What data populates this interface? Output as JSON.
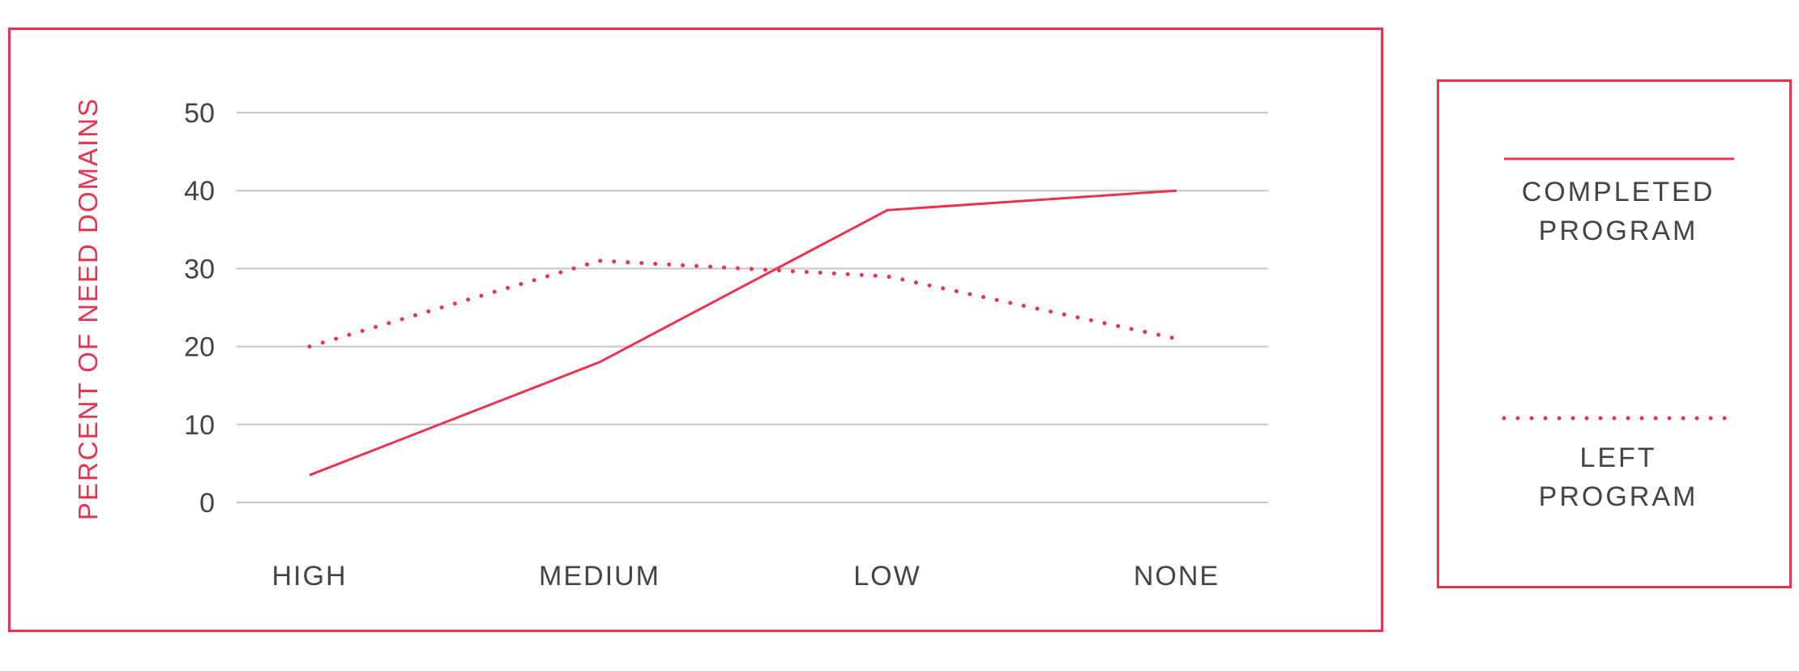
{
  "chart_data": {
    "type": "line",
    "title": "",
    "xlabel": "",
    "ylabel": "PERCENT OF NEED DOMAINS",
    "categories": [
      "HIGH",
      "MEDIUM",
      "LOW",
      "NONE"
    ],
    "yticks": [
      "0",
      "10",
      "20",
      "30",
      "40",
      "50"
    ],
    "ylim": [
      0,
      50
    ],
    "grid": true,
    "legend_position": "right",
    "series": [
      {
        "name_lines": [
          "COMPLETED",
          "PROGRAM"
        ],
        "style": "solid",
        "values": [
          3.5,
          18,
          37.5,
          40
        ]
      },
      {
        "name_lines": [
          "LEFT",
          "PROGRAM"
        ],
        "style": "dotted",
        "values": [
          20,
          31,
          29,
          21
        ]
      }
    ]
  },
  "colors": {
    "accent": "#e8344e",
    "grid": "#c8c8c8",
    "text": "#444444"
  }
}
